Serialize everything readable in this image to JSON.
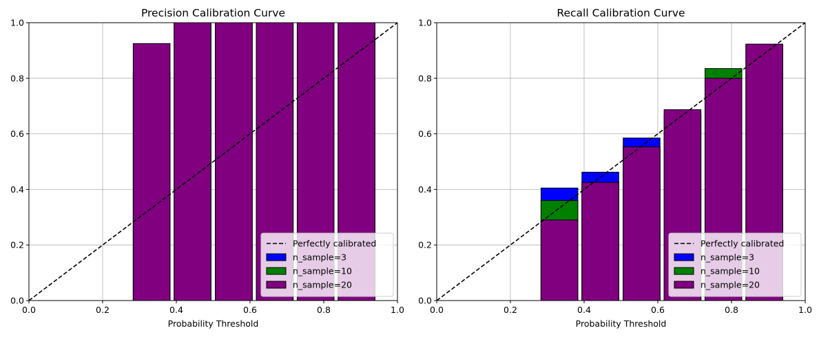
{
  "chart_data": [
    {
      "type": "bar",
      "title": "Precision Calibration Curve",
      "xlabel": "Probability Threshold",
      "ylabel": "",
      "xlim": [
        0,
        1
      ],
      "ylim": [
        0,
        1
      ],
      "xticks": [
        "0.0",
        "0.2",
        "0.4",
        "0.6",
        "0.8",
        "1.0"
      ],
      "yticks": [
        "0.0",
        "0.2",
        "0.4",
        "0.6",
        "0.8",
        "1.0"
      ],
      "grid": true,
      "legend_position": "lower-right",
      "bin_centers": [
        0.0,
        0.11,
        0.22,
        0.333,
        0.444,
        0.556,
        0.667,
        0.778,
        0.889
      ],
      "bar_width": 0.1,
      "reference_line": {
        "label": "Perfectly calibrated",
        "from": [
          0,
          0
        ],
        "to": [
          1,
          1
        ],
        "color": "#000000"
      },
      "series": [
        {
          "name": "n_sample=3",
          "color": "#0000ff",
          "values": [
            0,
            0,
            0,
            0.82,
            1.0,
            1.0,
            1.0,
            1.0,
            1.0
          ]
        },
        {
          "name": "n_sample=10",
          "color": "#008000",
          "values": [
            0,
            0,
            0,
            0.81,
            1.0,
            1.0,
            1.0,
            1.0,
            1.0
          ]
        },
        {
          "name": "n_sample=20",
          "color": "#800080",
          "values": [
            0,
            0,
            0,
            0.925,
            1.0,
            1.0,
            1.0,
            1.0,
            1.0
          ]
        }
      ]
    },
    {
      "type": "bar",
      "title": "Recall Calibration Curve",
      "xlabel": "Probability Threshold",
      "ylabel": "",
      "xlim": [
        0,
        1
      ],
      "ylim": [
        0,
        1
      ],
      "xticks": [
        "0.0",
        "0.2",
        "0.4",
        "0.6",
        "0.8",
        "1.0"
      ],
      "yticks": [
        "0.0",
        "0.2",
        "0.4",
        "0.6",
        "0.8",
        "1.0"
      ],
      "grid": true,
      "legend_position": "lower-right",
      "bin_centers": [
        0.0,
        0.11,
        0.22,
        0.333,
        0.444,
        0.556,
        0.667,
        0.778,
        0.889
      ],
      "bar_width": 0.1,
      "reference_line": {
        "label": "Perfectly calibrated",
        "from": [
          0,
          0
        ],
        "to": [
          1,
          1
        ],
        "color": "#000000"
      },
      "series": [
        {
          "name": "n_sample=3",
          "color": "#0000ff",
          "values": [
            0,
            0,
            0,
            0.405,
            0.462,
            0.585,
            0.67,
            0.8,
            0.92
          ]
        },
        {
          "name": "n_sample=10",
          "color": "#008000",
          "values": [
            0,
            0,
            0,
            0.36,
            0.425,
            0.553,
            0.67,
            0.835,
            0.92
          ]
        },
        {
          "name": "n_sample=20",
          "color": "#800080",
          "values": [
            0,
            0,
            0,
            0.29,
            0.425,
            0.553,
            0.687,
            0.8,
            0.923
          ]
        }
      ]
    }
  ]
}
